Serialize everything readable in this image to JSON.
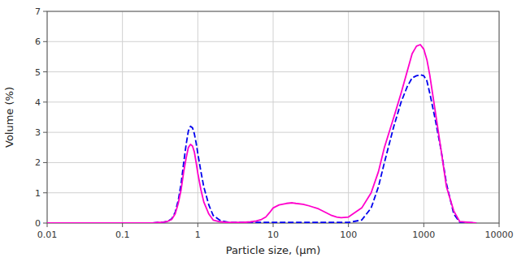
{
  "chart_data": {
    "type": "line",
    "xlabel": "Particle size, (μm)",
    "ylabel": "Volume (%)",
    "log": "x",
    "grid": true,
    "xlim": [
      0.01,
      10000
    ],
    "ylim": [
      0,
      7
    ],
    "xticks": [
      0.01,
      0.1,
      1,
      10,
      100,
      1000,
      10000
    ],
    "yticks": [
      0,
      1,
      2,
      3,
      4,
      5,
      6,
      7
    ],
    "series": [
      {
        "color": "#FF00CC",
        "line_style": "solid",
        "x": [
          0.01,
          0.05,
          0.1,
          0.15,
          0.2,
          0.25,
          0.3,
          0.35,
          0.4,
          0.45,
          0.5,
          0.55,
          0.6,
          0.65,
          0.7,
          0.75,
          0.8,
          0.85,
          0.9,
          0.95,
          1.0,
          1.1,
          1.2,
          1.4,
          1.6,
          2.0,
          2.5,
          3.0,
          4.0,
          5.0,
          6.0,
          7.0,
          8.0,
          9.0,
          10.0,
          12.0,
          15.0,
          18.0,
          20.0,
          25.0,
          30.0,
          40.0,
          50.0,
          60.0,
          70.0,
          80.0,
          100.0,
          150.0,
          200.0,
          250.0,
          300.0,
          400.0,
          500.0,
          600.0,
          700.0,
          800.0,
          900.0,
          1000.0,
          1100.0,
          1200.0,
          1400.0,
          1700.0,
          2000.0,
          2500.0,
          3000.0,
          5000.0
        ],
        "values": [
          0.0,
          0.0,
          0.0,
          0.0,
          0.0,
          0.0,
          0.02,
          0.03,
          0.06,
          0.12,
          0.3,
          0.65,
          1.1,
          1.7,
          2.15,
          2.5,
          2.6,
          2.55,
          2.35,
          2.0,
          1.65,
          1.1,
          0.7,
          0.3,
          0.1,
          0.04,
          0.02,
          0.02,
          0.02,
          0.04,
          0.07,
          0.12,
          0.2,
          0.35,
          0.5,
          0.6,
          0.65,
          0.67,
          0.65,
          0.62,
          0.57,
          0.47,
          0.35,
          0.25,
          0.2,
          0.18,
          0.2,
          0.5,
          1.0,
          1.7,
          2.5,
          3.5,
          4.3,
          5.0,
          5.6,
          5.85,
          5.9,
          5.75,
          5.4,
          4.9,
          3.8,
          2.4,
          1.2,
          0.4,
          0.05,
          0.0
        ]
      },
      {
        "color": "#0000EE",
        "line_style": "dashed",
        "x": [
          0.01,
          0.05,
          0.1,
          0.15,
          0.2,
          0.25,
          0.3,
          0.35,
          0.4,
          0.45,
          0.5,
          0.55,
          0.6,
          0.65,
          0.7,
          0.75,
          0.8,
          0.85,
          0.9,
          0.95,
          1.0,
          1.1,
          1.2,
          1.4,
          1.6,
          2.0,
          2.5,
          3.0,
          4.0,
          5.0,
          6.0,
          7.0,
          8.0,
          9.0,
          10.0,
          12.0,
          15.0,
          20.0,
          30.0,
          50.0,
          80.0,
          100.0,
          150.0,
          200.0,
          250.0,
          300.0,
          400.0,
          500.0,
          600.0,
          700.0,
          800.0,
          900.0,
          1000.0,
          1100.0,
          1200.0,
          1400.0,
          1700.0,
          2000.0,
          2500.0,
          3000.0,
          5000.0
        ],
        "values": [
          0.0,
          0.0,
          0.0,
          0.0,
          0.0,
          0.0,
          0.02,
          0.03,
          0.06,
          0.14,
          0.35,
          0.75,
          1.3,
          2.0,
          2.6,
          3.05,
          3.2,
          3.15,
          2.95,
          2.65,
          2.3,
          1.7,
          1.2,
          0.6,
          0.25,
          0.08,
          0.03,
          0.02,
          0.02,
          0.02,
          0.02,
          0.02,
          0.02,
          0.02,
          0.02,
          0.02,
          0.02,
          0.02,
          0.02,
          0.02,
          0.02,
          0.02,
          0.1,
          0.5,
          1.2,
          2.0,
          3.2,
          4.0,
          4.5,
          4.8,
          4.87,
          4.9,
          4.87,
          4.7,
          4.3,
          3.5,
          2.4,
          1.3,
          0.3,
          0.03,
          0.0
        ]
      }
    ]
  }
}
